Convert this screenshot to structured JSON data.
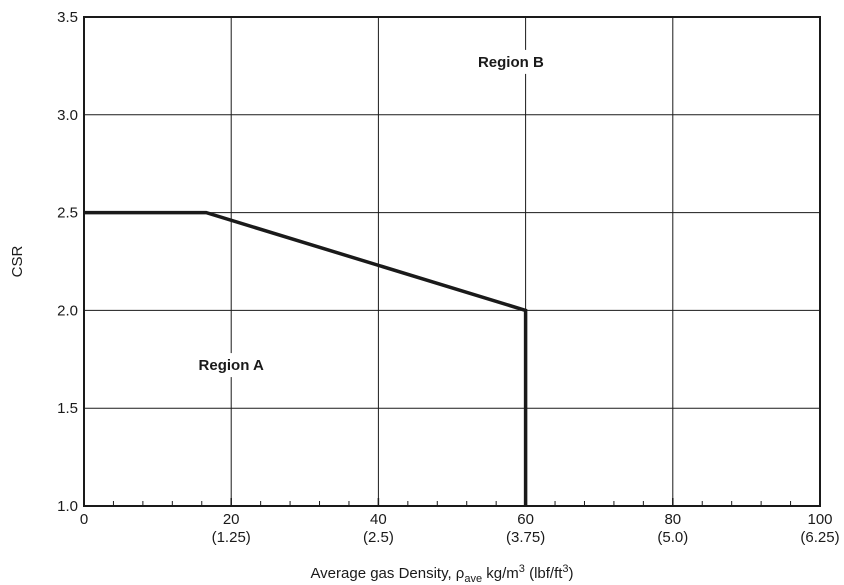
{
  "chart_data": {
    "type": "line",
    "title": "",
    "xlabel": "Average gas Density, ρave kg/m³ (lbf/ft³)",
    "ylabel": "CSR",
    "xlim": [
      0,
      100
    ],
    "ylim": [
      1.0,
      3.5
    ],
    "grid": true,
    "x_ticks": [
      {
        "value": 0,
        "label": "0",
        "sublabel": ""
      },
      {
        "value": 20,
        "label": "20",
        "sublabel": "(1.25)"
      },
      {
        "value": 40,
        "label": "40",
        "sublabel": "(2.5)"
      },
      {
        "value": 60,
        "label": "60",
        "sublabel": "(3.75)"
      },
      {
        "value": 80,
        "label": "80",
        "sublabel": "(5.0)"
      },
      {
        "value": 100,
        "label": "100",
        "sublabel": "(6.25)"
      }
    ],
    "y_ticks": [
      {
        "value": 1.0,
        "label": "1.0"
      },
      {
        "value": 1.5,
        "label": "1.5"
      },
      {
        "value": 2.0,
        "label": "2.0"
      },
      {
        "value": 2.5,
        "label": "2.5"
      },
      {
        "value": 3.0,
        "label": "3.0"
      },
      {
        "value": 3.5,
        "label": "3.5"
      }
    ],
    "x_minor_step": 4,
    "series": [
      {
        "x": [
          0,
          16.6,
          60,
          60
        ],
        "y": [
          2.5,
          2.5,
          2.0,
          1.0
        ],
        "color": "#1a1a1a"
      }
    ],
    "annotations": [
      {
        "text": "Region A",
        "x": 20,
        "y": 1.7
      },
      {
        "text": "Region B",
        "x": 58,
        "y": 3.25
      }
    ]
  }
}
